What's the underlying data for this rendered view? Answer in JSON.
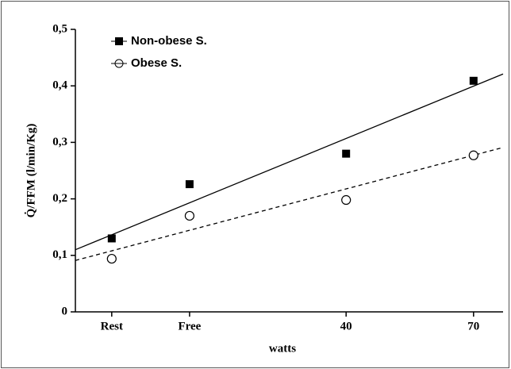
{
  "chart_data": {
    "type": "scatter",
    "categories": [
      "Rest",
      "Free",
      "40",
      "70"
    ],
    "x_label": "watts",
    "y_label": "Q̇/FFM  (l/min/Kg)",
    "series": [
      {
        "name": "Non-obese S.",
        "color": "#000000",
        "marker": "square",
        "line": "solid",
        "values": [
          0.13,
          0.226,
          0.28,
          0.409
        ],
        "trend": [
          0.11,
          0.421
        ]
      },
      {
        "name": "Obese S.",
        "color": "#000000",
        "marker": "circle",
        "line": "dashed",
        "values": [
          0.094,
          0.17,
          0.198,
          0.277
        ],
        "trend": [
          0.091,
          0.291
        ]
      }
    ],
    "ylim": [
      0,
      0.5
    ],
    "yticks": [
      0,
      {
        "value": 0.1,
        "label": "0,1"
      },
      {
        "value": 0.2,
        "label": "0,2"
      },
      {
        "value": 0.3,
        "label": "0,3"
      },
      {
        "value": 0.4,
        "label": "0,4"
      },
      {
        "value": 0.5,
        "label": "0,5"
      }
    ],
    "legend": "top-left"
  }
}
